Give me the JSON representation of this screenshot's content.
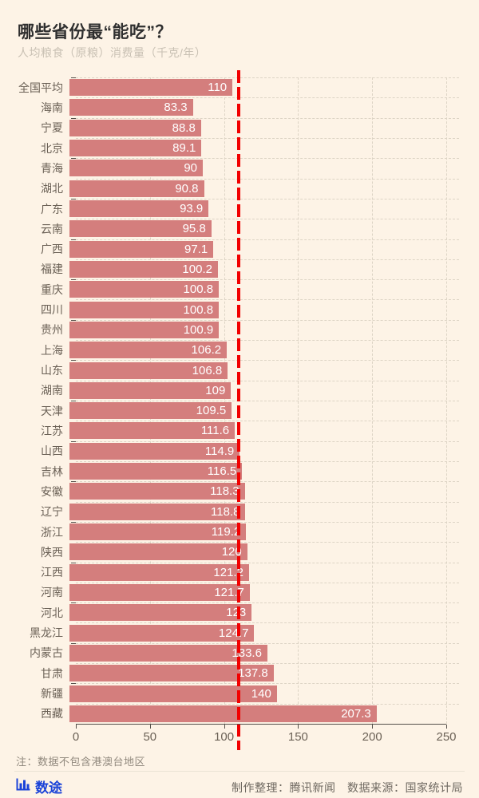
{
  "header": {
    "title": "哪些省份最“能吃”？",
    "subtitle": "人均粮食（原粮）消费量（千克/年）"
  },
  "chart_data": {
    "type": "bar",
    "orientation": "horizontal",
    "title": "哪些省份最“能吃”？",
    "subtitle": "人均粮食（原粮）消费量（千克/年）",
    "categories": [
      "全国平均",
      "海南",
      "宁夏",
      "北京",
      "青海",
      "湖北",
      "广东",
      "云南",
      "广西",
      "福建",
      "重庆",
      "四川",
      "贵州",
      "上海",
      "山东",
      "湖南",
      "天津",
      "江苏",
      "山西",
      "吉林",
      "安徽",
      "辽宁",
      "浙江",
      "陕西",
      "江西",
      "河南",
      "河北",
      "黑龙江",
      "内蒙古",
      "甘肃",
      "新疆",
      "西藏"
    ],
    "values": [
      110,
      83.3,
      88.8,
      89.1,
      90,
      90.8,
      93.9,
      95.8,
      97.1,
      100.2,
      100.8,
      100.8,
      100.9,
      106.2,
      106.8,
      109,
      109.5,
      111.6,
      114.9,
      116.5,
      118.3,
      118.8,
      119.2,
      120,
      121.2,
      121.7,
      123,
      124.7,
      133.6,
      137.8,
      140,
      207.3
    ],
    "xlabel": "",
    "ylabel": "",
    "xlim": [
      0,
      250
    ],
    "x_ticks": [
      0,
      50,
      100,
      150,
      200,
      250
    ],
    "grid": true,
    "reference_line": {
      "value": 110,
      "style": "dashed",
      "color": "#f20000"
    },
    "bar_color": "#d47e7d",
    "value_label_position": "inside-right",
    "value_label_color": "#ffffff"
  },
  "note": "注：数据不包含港澳台地区",
  "footer": {
    "logo_icon": "bar-chart-icon",
    "logo_text": "数途",
    "logo_color": "#1b43d8",
    "credits": "制作整理：腾讯新闻　数据来源：国家统计局"
  },
  "colors": {
    "background": "#fdf3e6",
    "title": "#2f2f2f",
    "subtitle": "#c9c1b4",
    "category_label": "#6b6156",
    "axis": "#55504a",
    "gridline": "#ddd4c5"
  }
}
